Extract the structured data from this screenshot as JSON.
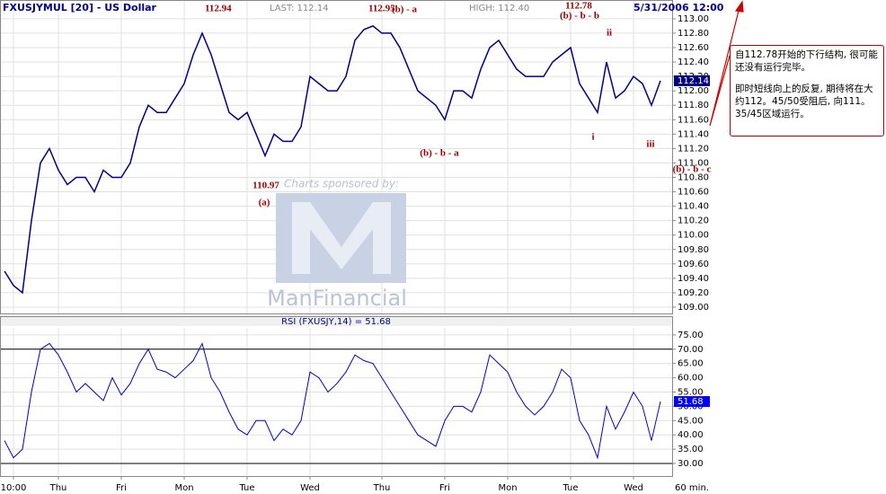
{
  "chart_data": [
    {
      "type": "line",
      "title": "FXUSJYMUL [20] - US Dollar",
      "last_label": "LAST: 112.14",
      "high_label": "HIGH: 112.40",
      "timestamp": "5/31/2006 12:00",
      "last_value": 112.14,
      "color": "#00008b",
      "grid": true,
      "ylim": [
        108.9,
        113.26
      ],
      "yticks": [
        {
          "value": 109,
          "label": "109.00"
        },
        {
          "value": 109.2,
          "label": "109.20"
        },
        {
          "value": 109.4,
          "label": "109.40"
        },
        {
          "value": 109.6,
          "label": "109.60"
        },
        {
          "value": 109.8,
          "label": "109.80"
        },
        {
          "value": 110,
          "label": "110.00"
        },
        {
          "value": 110.2,
          "label": "110.20"
        },
        {
          "value": 110.4,
          "label": "110.40"
        },
        {
          "value": 110.6,
          "label": "110.60"
        },
        {
          "value": 110.8,
          "label": "110.80"
        },
        {
          "value": 111,
          "label": "111.00"
        },
        {
          "value": 111.2,
          "label": "111.20"
        },
        {
          "value": 111.4,
          "label": "111.40"
        },
        {
          "value": 111.6,
          "label": "111.60"
        },
        {
          "value": 111.8,
          "label": "111.80"
        },
        {
          "value": 112,
          "label": "112.00"
        },
        {
          "value": 112.2,
          "label": "112.20"
        },
        {
          "value": 112.4,
          "label": "112.40"
        },
        {
          "value": 112.6,
          "label": "112.60"
        },
        {
          "value": 112.8,
          "label": "112.80"
        },
        {
          "value": 113,
          "label": "113.00"
        }
      ],
      "values": [
        109.5,
        109.3,
        109.2,
        110.2,
        111.0,
        111.2,
        110.9,
        110.7,
        110.8,
        110.8,
        110.6,
        110.9,
        110.8,
        110.8,
        111.0,
        111.5,
        111.8,
        111.7,
        111.7,
        111.9,
        112.1,
        112.5,
        112.8,
        112.5,
        112.1,
        111.7,
        111.6,
        111.7,
        111.4,
        111.1,
        111.4,
        111.3,
        111.3,
        111.5,
        112.2,
        112.1,
        112.0,
        112.0,
        112.2,
        112.7,
        112.85,
        112.9,
        112.8,
        112.8,
        112.6,
        112.3,
        112.0,
        111.9,
        111.8,
        111.6,
        112.0,
        112.0,
        111.9,
        112.3,
        112.6,
        112.7,
        112.5,
        112.3,
        112.2,
        112.2,
        112.2,
        112.4,
        112.5,
        112.6,
        112.1,
        111.9,
        111.7,
        112.4,
        111.9,
        112.0,
        112.2,
        112.1,
        111.8,
        112.14
      ],
      "annotations": [
        "112.94",
        "112.95",
        "(b) - a",
        "(b) - b - b",
        "112.78",
        "ii",
        "110.97",
        "(a)",
        "(b) - b - a",
        "i",
        "iii",
        "(b) - b - c"
      ],
      "watermark": [
        "Charts sponsored by:",
        "ManFinancial"
      ],
      "note": [
        "自112.78开始的下行结构, 很可能还没有运行完毕。",
        "即时短线向上的反复, 期待将在大约112。45/50受阻后, 向111。35/45区域运行。"
      ]
    },
    {
      "type": "line",
      "title": "RSI (FXUSJY,14) = 51.68",
      "last_value": 51.68,
      "color": "#0000cc",
      "grid": true,
      "ylim": [
        25.6,
        77.8
      ],
      "yticks": [
        {
          "value": 30,
          "label": "30.00"
        },
        {
          "value": 35,
          "label": "35.00"
        },
        {
          "value": 40,
          "label": "40.00"
        },
        {
          "value": 45,
          "label": "45.00"
        },
        {
          "value": 50,
          "label": "50.00"
        },
        {
          "value": 55,
          "label": "55.00"
        },
        {
          "value": 60,
          "label": "60.00"
        },
        {
          "value": 65,
          "label": "65.00"
        },
        {
          "value": 70,
          "label": "70.00"
        },
        {
          "value": 75,
          "label": "75.00"
        }
      ],
      "hlines": [
        70,
        30
      ],
      "values": [
        38,
        32,
        35,
        55,
        70,
        72,
        68,
        62,
        55,
        58,
        55,
        52,
        60,
        54,
        58,
        65,
        70,
        63,
        62,
        60,
        63,
        66,
        72,
        60,
        55,
        48,
        42,
        40,
        45,
        45,
        38,
        42,
        40,
        45,
        62,
        60,
        55,
        58,
        62,
        68,
        66,
        65,
        60,
        55,
        50,
        45,
        40,
        38,
        36,
        45,
        50,
        50,
        48,
        55,
        68,
        65,
        62,
        55,
        50,
        47,
        50,
        55,
        63,
        60,
        45,
        40,
        32,
        50,
        42,
        48,
        55,
        50,
        38,
        51.68
      ],
      "categories": [
        null,
        "10:00",
        null,
        null,
        null,
        null,
        "Thu",
        null,
        null,
        null,
        null,
        null,
        null,
        "Fri",
        null,
        null,
        null,
        null,
        null,
        null,
        "Mon",
        null,
        null,
        null,
        null,
        null,
        null,
        "Tue",
        null,
        null,
        null,
        null,
        null,
        null,
        "Wed",
        null,
        null,
        null,
        null,
        null,
        null,
        null,
        "Thu",
        null,
        null,
        null,
        null,
        null,
        null,
        "Fri",
        null,
        null,
        null,
        null,
        null,
        null,
        "Mon",
        null,
        null,
        null,
        null,
        null,
        null,
        "Tue",
        null,
        null,
        null,
        null,
        null,
        null,
        "Wed",
        null,
        null,
        null
      ],
      "x_unit": "60 min."
    }
  ]
}
